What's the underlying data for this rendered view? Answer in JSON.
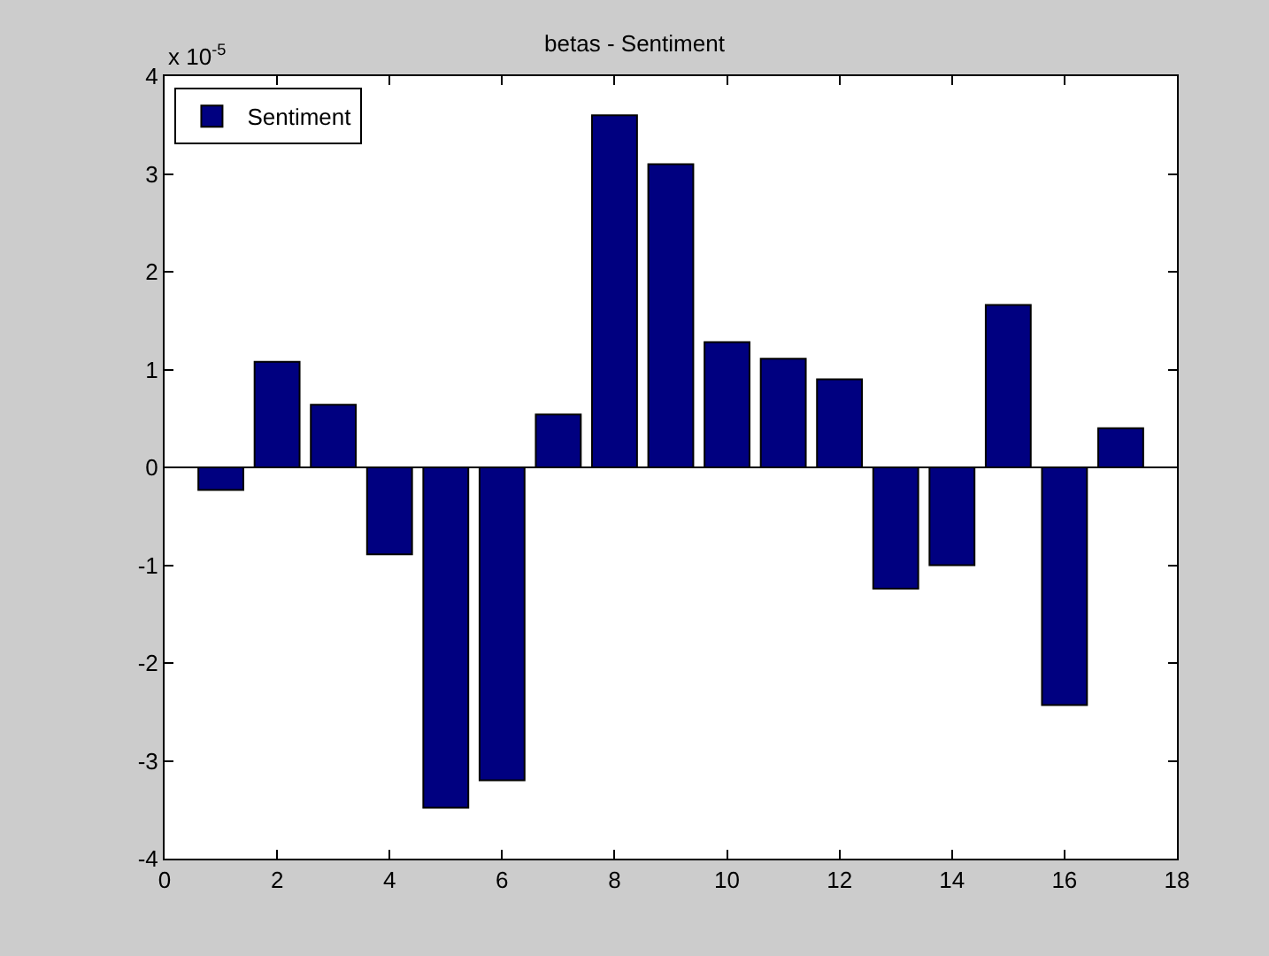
{
  "chart_data": {
    "type": "bar",
    "title": "betas - Sentiment",
    "annotations": [
      "x 10$^{-5}$"
    ],
    "x": [
      1,
      2,
      3,
      4,
      5,
      6,
      7,
      8,
      9,
      10,
      11,
      12,
      13,
      14,
      15,
      16,
      17
    ],
    "series": [
      {
        "name": "Sentiment",
        "color": "#000080",
        "values": [
          -0.23,
          1.08,
          0.64,
          -0.89,
          -3.48,
          -3.2,
          0.54,
          3.6,
          3.1,
          1.28,
          1.11,
          0.9,
          -1.24,
          -1.0,
          1.66,
          -2.43,
          0.4
        ]
      }
    ],
    "xlim": [
      0,
      18
    ],
    "xticks": [
      0,
      2,
      4,
      6,
      8,
      10,
      12,
      14,
      16,
      18
    ],
    "ylim": [
      -4,
      4
    ],
    "yticks": [
      -4,
      -3,
      -2,
      -1,
      0,
      1,
      2,
      3,
      4
    ],
    "legend": "top left"
  }
}
